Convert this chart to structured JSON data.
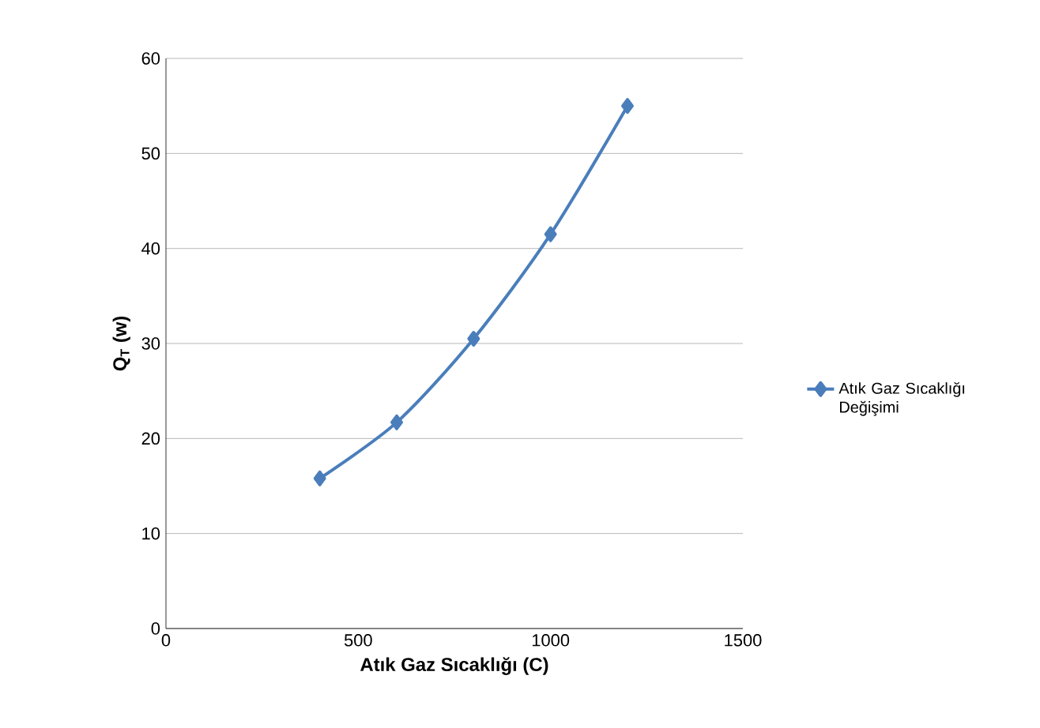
{
  "chart_data": {
    "type": "line",
    "xlabel": "Atık Gaz Sıcaklığı (C)",
    "ylabel": "Q$_{T}$ (w)",
    "x": [
      400,
      600,
      800,
      1000,
      1200
    ],
    "series": [
      {
        "name": "Atık Gaz Sıcaklığı Değişimi",
        "color": "#4a7ebb",
        "values": [
          15.8,
          21.7,
          30.5,
          41.5,
          55.0
        ]
      }
    ],
    "xlim": [
      0,
      1500
    ],
    "xticks": [
      0,
      500,
      1000,
      1500
    ],
    "ylim": [
      0,
      60
    ],
    "yticks": [
      0,
      10,
      20,
      30,
      40,
      50,
      60
    ],
    "grid": "y",
    "legend": "right",
    "marker": "diamond",
    "line_style": "solid"
  }
}
